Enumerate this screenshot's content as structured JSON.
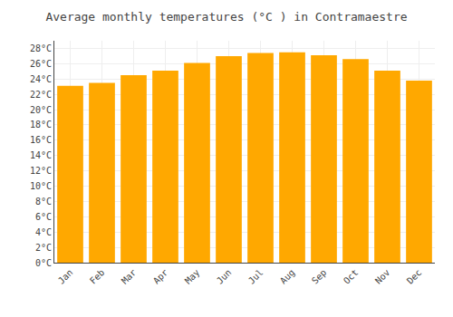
{
  "chart_data": {
    "type": "bar",
    "title": "Average monthly temperatures (°C ) in Contramaestre",
    "categories": [
      "Jan",
      "Feb",
      "Mar",
      "Apr",
      "May",
      "Jun",
      "Jul",
      "Aug",
      "Sep",
      "Oct",
      "Nov",
      "Dec"
    ],
    "values": [
      23.1,
      23.5,
      24.5,
      25.1,
      26.1,
      27.0,
      27.4,
      27.5,
      27.1,
      26.6,
      25.1,
      23.8
    ],
    "color": "#FFA800",
    "ylim": [
      0,
      29
    ],
    "yticks": [
      {
        "value": 0,
        "label": "0°C"
      },
      {
        "value": 2,
        "label": "2°C"
      },
      {
        "value": 4,
        "label": "4°C"
      },
      {
        "value": 6,
        "label": "6°C"
      },
      {
        "value": 8,
        "label": "8°C"
      },
      {
        "value": 10,
        "label": "10°C"
      },
      {
        "value": 12,
        "label": "12°C"
      },
      {
        "value": 14,
        "label": "14°C"
      },
      {
        "value": 16,
        "label": "16°C"
      },
      {
        "value": 18,
        "label": "18°C"
      },
      {
        "value": 20,
        "label": "20°C"
      },
      {
        "value": 22,
        "label": "22°C"
      },
      {
        "value": 24,
        "label": "24°C"
      },
      {
        "value": 26,
        "label": "26°C"
      },
      {
        "value": 28,
        "label": "28°C"
      }
    ],
    "grid": true
  }
}
